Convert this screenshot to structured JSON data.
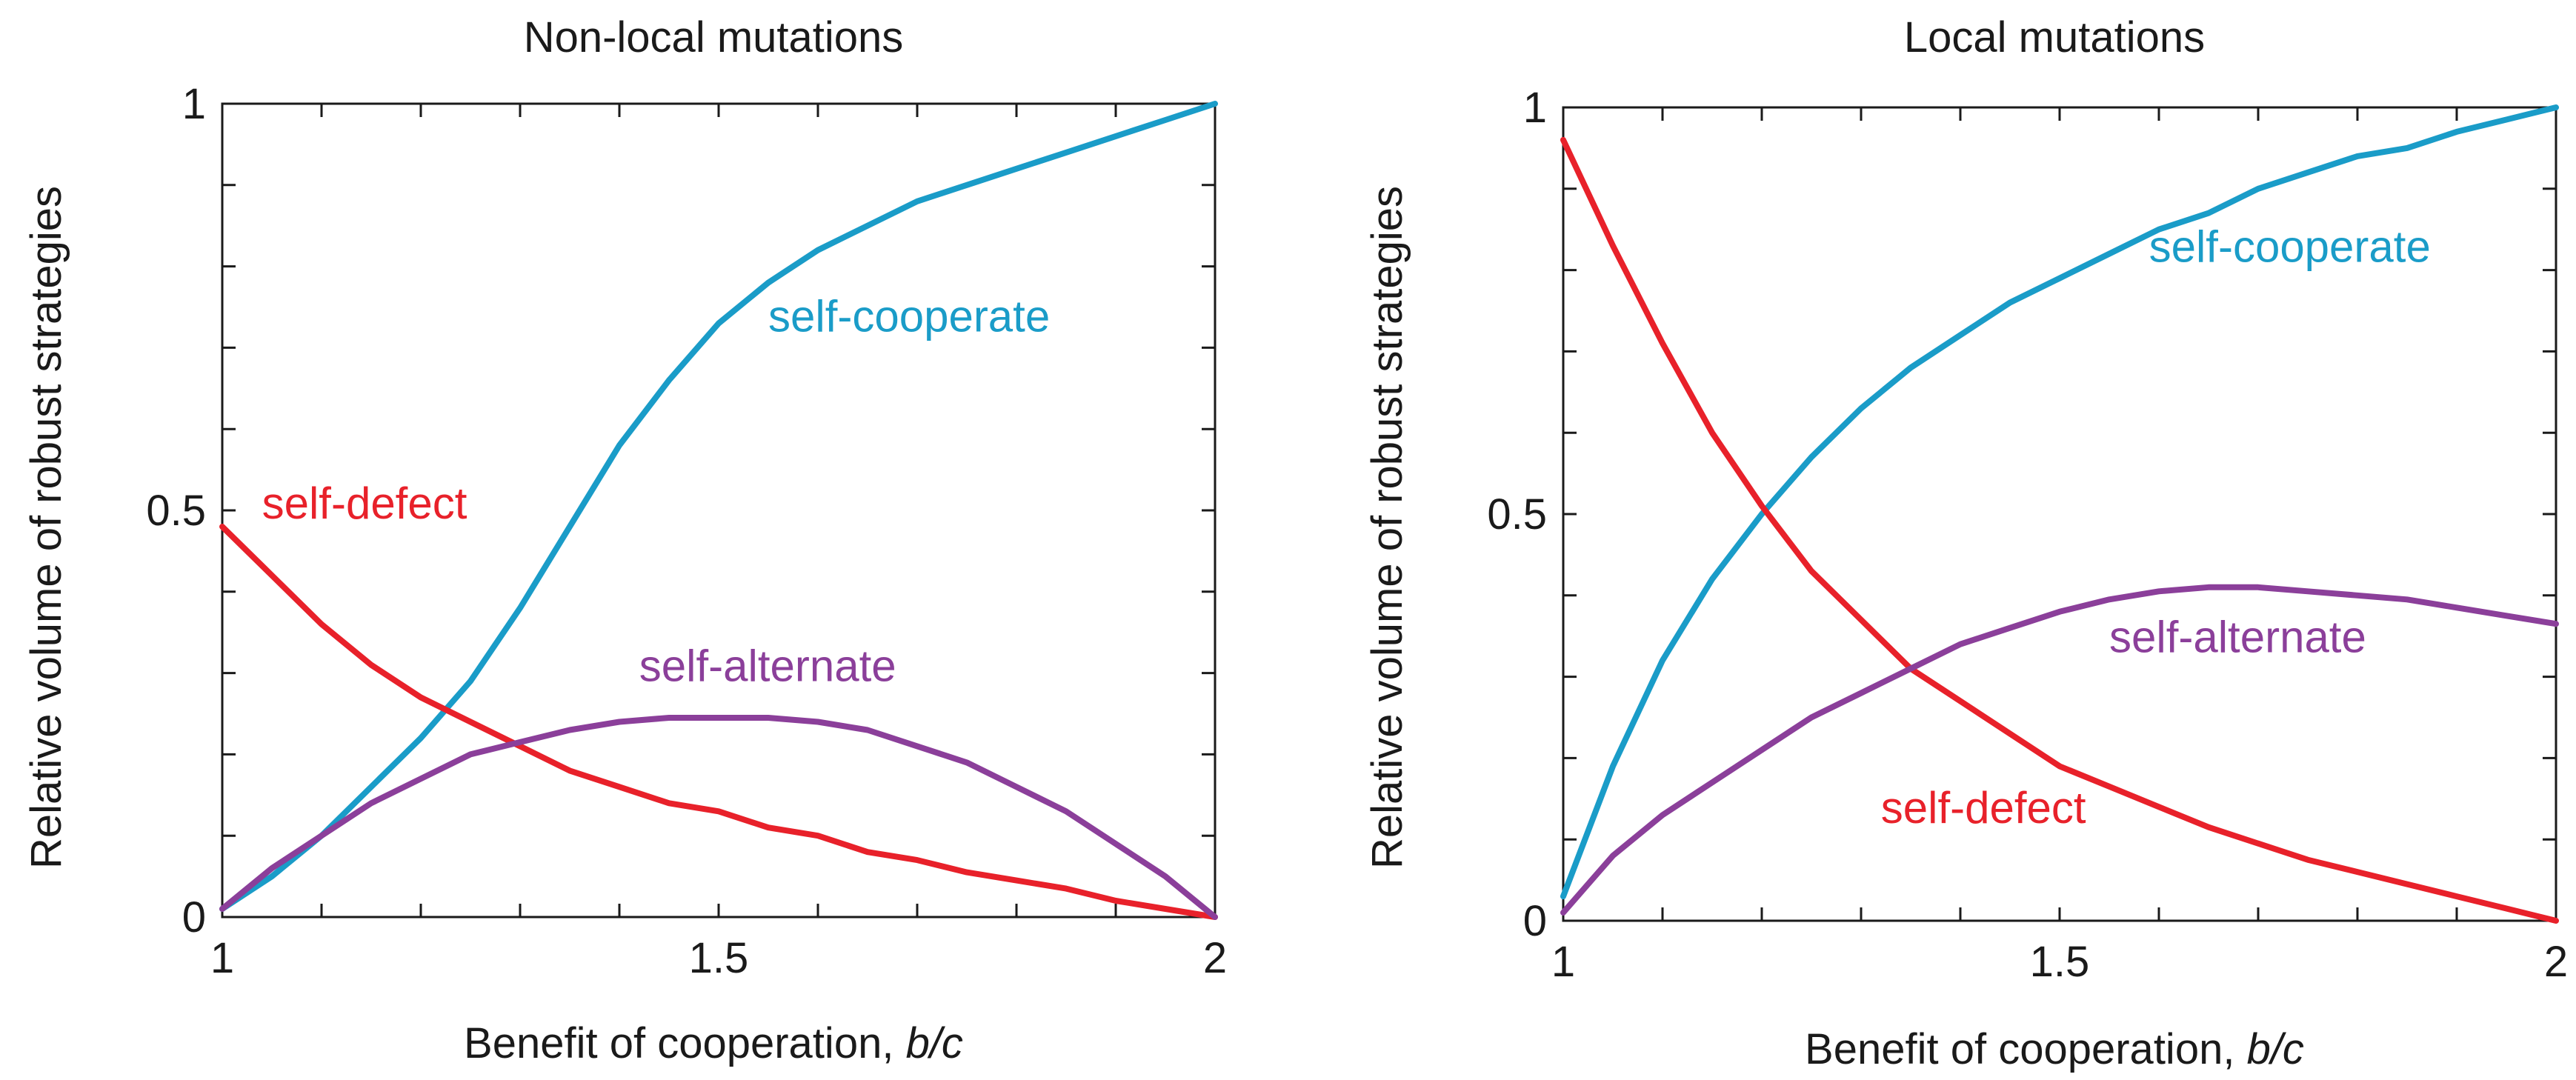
{
  "chart_data": [
    {
      "type": "line",
      "title": "Non-local mutations",
      "xlabel": "Benefit of cooperation, ",
      "xlabel_italic": "b/c",
      "ylabel": "Relative volume of robust strategies",
      "xlim": [
        1,
        2
      ],
      "ylim": [
        0,
        1
      ],
      "xticks": [
        {
          "v": 1,
          "label": "1"
        },
        {
          "v": 1.5,
          "label": "1.5"
        },
        {
          "v": 2,
          "label": "2"
        }
      ],
      "yticks": [
        {
          "v": 0,
          "label": "0"
        },
        {
          "v": 0.5,
          "label": "0.5"
        },
        {
          "v": 1,
          "label": "1"
        }
      ],
      "grid": false,
      "series": [
        {
          "name": "self-cooperate",
          "color": "#1a9cc8",
          "x": [
            1.0,
            1.05,
            1.1,
            1.15,
            1.2,
            1.25,
            1.3,
            1.35,
            1.4,
            1.45,
            1.5,
            1.55,
            1.6,
            1.65,
            1.7,
            1.75,
            1.8,
            1.85,
            1.9,
            1.95,
            2.0
          ],
          "y": [
            0.01,
            0.05,
            0.1,
            0.16,
            0.22,
            0.29,
            0.38,
            0.48,
            0.58,
            0.66,
            0.73,
            0.78,
            0.82,
            0.85,
            0.88,
            0.9,
            0.92,
            0.94,
            0.96,
            0.98,
            1.0
          ]
        },
        {
          "name": "self-defect",
          "color": "#e8212a",
          "x": [
            1.0,
            1.05,
            1.1,
            1.15,
            1.2,
            1.25,
            1.3,
            1.35,
            1.4,
            1.45,
            1.5,
            1.55,
            1.6,
            1.65,
            1.7,
            1.75,
            1.8,
            1.85,
            1.9,
            1.95,
            2.0
          ],
          "y": [
            0.48,
            0.42,
            0.36,
            0.31,
            0.27,
            0.24,
            0.21,
            0.18,
            0.16,
            0.14,
            0.13,
            0.11,
            0.1,
            0.08,
            0.07,
            0.055,
            0.045,
            0.035,
            0.02,
            0.01,
            0.0
          ]
        },
        {
          "name": "self-alternate",
          "color": "#8b3f9a",
          "x": [
            1.0,
            1.05,
            1.1,
            1.15,
            1.2,
            1.25,
            1.3,
            1.35,
            1.4,
            1.45,
            1.5,
            1.55,
            1.6,
            1.65,
            1.7,
            1.75,
            1.8,
            1.85,
            1.9,
            1.95,
            2.0
          ],
          "y": [
            0.01,
            0.06,
            0.1,
            0.14,
            0.17,
            0.2,
            0.215,
            0.23,
            0.24,
            0.245,
            0.245,
            0.245,
            0.24,
            0.23,
            0.21,
            0.19,
            0.16,
            0.13,
            0.09,
            0.05,
            0.0
          ]
        }
      ],
      "annotations": [
        {
          "text": "self-cooperate",
          "x": 1.55,
          "y": 0.72,
          "color": "#1a9cc8"
        },
        {
          "text": "self-defect",
          "x": 1.04,
          "y": 0.49,
          "color": "#e8212a"
        },
        {
          "text": "self-alternate",
          "x": 1.42,
          "y": 0.29,
          "color": "#8b3f9a"
        }
      ]
    },
    {
      "type": "line",
      "title": "Local mutations",
      "xlabel": "Benefit of cooperation, ",
      "xlabel_italic": "b/c",
      "ylabel": "Relative volume of robust strategies",
      "xlim": [
        1,
        2
      ],
      "ylim": [
        0,
        1
      ],
      "xticks": [
        {
          "v": 1,
          "label": "1"
        },
        {
          "v": 1.5,
          "label": "1.5"
        },
        {
          "v": 2,
          "label": "2"
        }
      ],
      "yticks": [
        {
          "v": 0,
          "label": "0"
        },
        {
          "v": 0.5,
          "label": "0.5"
        },
        {
          "v": 1,
          "label": "1"
        }
      ],
      "grid": false,
      "series": [
        {
          "name": "self-cooperate",
          "color": "#1a9cc8",
          "x": [
            1.0,
            1.05,
            1.1,
            1.15,
            1.2,
            1.25,
            1.3,
            1.35,
            1.4,
            1.45,
            1.5,
            1.55,
            1.6,
            1.65,
            1.7,
            1.75,
            1.8,
            1.85,
            1.9,
            1.95,
            2.0
          ],
          "y": [
            0.03,
            0.19,
            0.32,
            0.42,
            0.5,
            0.57,
            0.63,
            0.68,
            0.72,
            0.76,
            0.79,
            0.82,
            0.85,
            0.87,
            0.9,
            0.92,
            0.94,
            0.95,
            0.97,
            0.985,
            1.0
          ]
        },
        {
          "name": "self-defect",
          "color": "#e8212a",
          "x": [
            1.0,
            1.05,
            1.1,
            1.15,
            1.2,
            1.25,
            1.3,
            1.35,
            1.4,
            1.45,
            1.5,
            1.55,
            1.6,
            1.65,
            1.7,
            1.75,
            1.8,
            1.85,
            1.9,
            1.95,
            2.0
          ],
          "y": [
            0.96,
            0.83,
            0.71,
            0.6,
            0.51,
            0.43,
            0.37,
            0.31,
            0.27,
            0.23,
            0.19,
            0.165,
            0.14,
            0.115,
            0.095,
            0.075,
            0.06,
            0.045,
            0.03,
            0.015,
            0.0
          ]
        },
        {
          "name": "self-alternate",
          "color": "#8b3f9a",
          "x": [
            1.0,
            1.05,
            1.1,
            1.15,
            1.2,
            1.25,
            1.3,
            1.35,
            1.4,
            1.45,
            1.5,
            1.55,
            1.6,
            1.65,
            1.7,
            1.75,
            1.8,
            1.85,
            1.9,
            1.95,
            2.0
          ],
          "y": [
            0.01,
            0.08,
            0.13,
            0.17,
            0.21,
            0.25,
            0.28,
            0.31,
            0.34,
            0.36,
            0.38,
            0.395,
            0.405,
            0.41,
            0.41,
            0.405,
            0.4,
            0.395,
            0.385,
            0.375,
            0.365
          ]
        }
      ],
      "annotations": [
        {
          "text": "self-cooperate",
          "x": 1.59,
          "y": 0.81,
          "color": "#1a9cc8"
        },
        {
          "text": "self-alternate",
          "x": 1.55,
          "y": 0.33,
          "color": "#8b3f9a"
        },
        {
          "text": "self-defect",
          "x": 1.32,
          "y": 0.12,
          "color": "#e8212a"
        }
      ]
    }
  ]
}
